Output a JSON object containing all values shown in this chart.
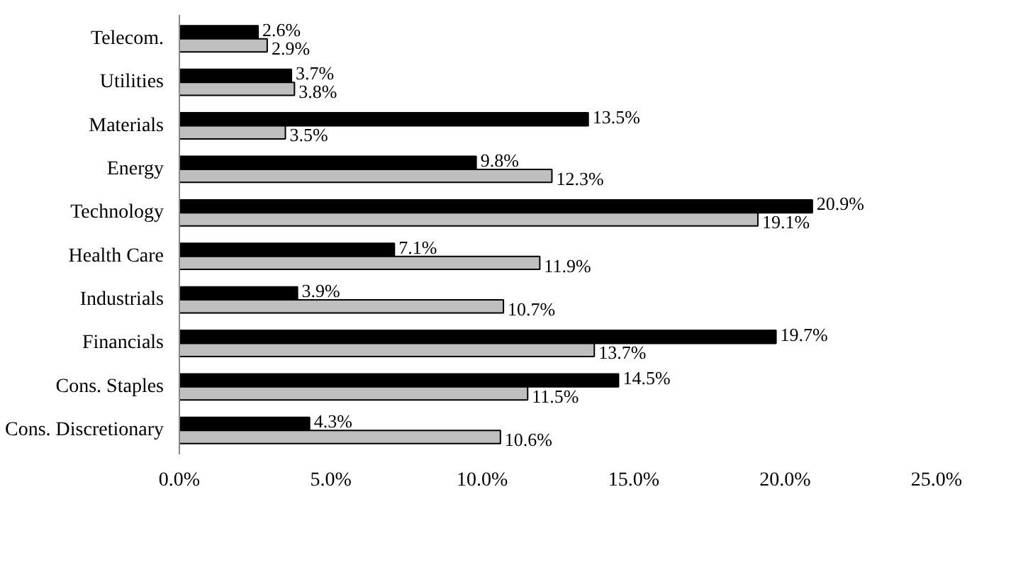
{
  "chart_data": {
    "type": "bar",
    "orientation": "horizontal",
    "categories": [
      "Telecom.",
      "Utilities",
      "Materials",
      "Energy",
      "Technology",
      "Health Care",
      "Industrials",
      "Financials",
      "Cons. Staples",
      "Cons. Discretionary"
    ],
    "series": [
      {
        "color": "#000000",
        "values": [
          2.6,
          3.7,
          13.5,
          9.8,
          20.9,
          7.1,
          3.9,
          19.7,
          14.5,
          4.3
        ],
        "value_labels": [
          "2.6%",
          "3.7%",
          "13.5%",
          "9.8%",
          "20.9%",
          "7.1%",
          "3.9%",
          "19.7%",
          "14.5%",
          "4.3%"
        ]
      },
      {
        "color": "#bfbfbf",
        "values": [
          2.9,
          3.8,
          3.5,
          12.3,
          19.1,
          11.9,
          10.7,
          13.7,
          11.5,
          10.6
        ],
        "value_labels": [
          "2.9%",
          "3.8%",
          "3.5%",
          "12.3%",
          "19.1%",
          "11.9%",
          "10.7%",
          "13.7%",
          "11.5%",
          "10.6%"
        ]
      }
    ],
    "xlim": [
      0,
      25
    ],
    "xticks": [
      {
        "value": 0,
        "label": "0.0%"
      },
      {
        "value": 5,
        "label": "5.0%"
      },
      {
        "value": 10,
        "label": "10.0%"
      },
      {
        "value": 15,
        "label": "15.0%"
      },
      {
        "value": 20,
        "label": "20.0%"
      },
      {
        "value": 25,
        "label": "25.0%"
      }
    ],
    "grid": false
  }
}
